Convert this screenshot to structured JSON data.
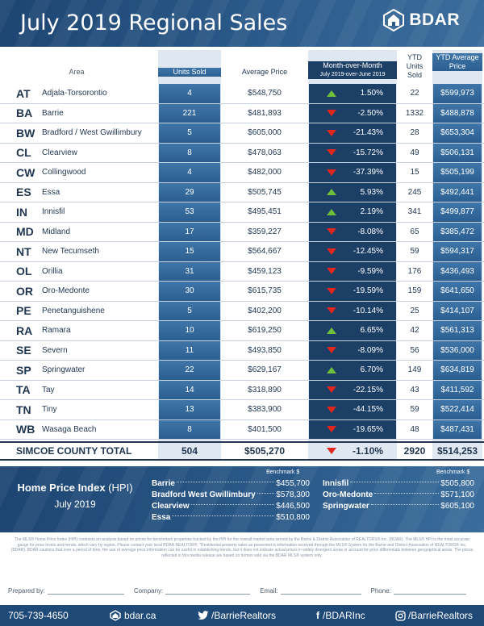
{
  "header": {
    "title": "July 2019 Regional Sales",
    "brand": "BDAR"
  },
  "table": {
    "columns": {
      "area": "Area",
      "units": "Units Sold",
      "avg": "Average Price",
      "mom": "Month-over-Month",
      "mom_sub": "July 2019-over-June 2019",
      "ytd_units": "YTD Units Sold",
      "ytd_avg": "YTD Average Price"
    },
    "rows": [
      {
        "code": "AT",
        "name": "Adjala-Torsorontio",
        "units": "4",
        "avg": "$548,750",
        "dir": "up",
        "mom": "1.50%",
        "ytd_units": "22",
        "ytd_avg": "$599,973"
      },
      {
        "code": "BA",
        "name": "Barrie",
        "units": "221",
        "avg": "$481,893",
        "dir": "down",
        "mom": "-2.50%",
        "ytd_units": "1332",
        "ytd_avg": "$488,878"
      },
      {
        "code": "BW",
        "name": "Bradford / West Gwillimbury",
        "units": "5",
        "avg": "$605,000",
        "dir": "down",
        "mom": "-21.43%",
        "ytd_units": "28",
        "ytd_avg": "$653,304"
      },
      {
        "code": "CL",
        "name": "Clearview",
        "units": "8",
        "avg": "$478,063",
        "dir": "down",
        "mom": "-15.72%",
        "ytd_units": "49",
        "ytd_avg": "$506,131"
      },
      {
        "code": "CW",
        "name": "Collingwood",
        "units": "4",
        "avg": "$482,000",
        "dir": "down",
        "mom": "-37.39%",
        "ytd_units": "15",
        "ytd_avg": "$505,199"
      },
      {
        "code": "ES",
        "name": "Essa",
        "units": "29",
        "avg": "$505,745",
        "dir": "up",
        "mom": "5.93%",
        "ytd_units": "245",
        "ytd_avg": "$492,441"
      },
      {
        "code": "IN",
        "name": "Innisfil",
        "units": "53",
        "avg": "$495,451",
        "dir": "up",
        "mom": "2.19%",
        "ytd_units": "341",
        "ytd_avg": "$499,877"
      },
      {
        "code": "MD",
        "name": "Midland",
        "units": "17",
        "avg": "$359,227",
        "dir": "down",
        "mom": "-8.08%",
        "ytd_units": "65",
        "ytd_avg": "$385,472"
      },
      {
        "code": "NT",
        "name": "New Tecumseth",
        "units": "15",
        "avg": "$564,667",
        "dir": "down",
        "mom": "-12.45%",
        "ytd_units": "59",
        "ytd_avg": "$594,317"
      },
      {
        "code": "OL",
        "name": "Orillia",
        "units": "31",
        "avg": "$459,123",
        "dir": "down",
        "mom": "-9.59%",
        "ytd_units": "176",
        "ytd_avg": "$436,493"
      },
      {
        "code": "OR",
        "name": "Oro-Medonte",
        "units": "30",
        "avg": "$615,735",
        "dir": "down",
        "mom": "-19.59%",
        "ytd_units": "159",
        "ytd_avg": "$641,650"
      },
      {
        "code": "PE",
        "name": "Penetanguishene",
        "units": "5",
        "avg": "$402,200",
        "dir": "down",
        "mom": "-10.14%",
        "ytd_units": "25",
        "ytd_avg": "$414,107"
      },
      {
        "code": "RA",
        "name": "Ramara",
        "units": "10",
        "avg": "$619,250",
        "dir": "up",
        "mom": "6.65%",
        "ytd_units": "42",
        "ytd_avg": "$561,313"
      },
      {
        "code": "SE",
        "name": "Severn",
        "units": "11",
        "avg": "$493,850",
        "dir": "down",
        "mom": "-8.09%",
        "ytd_units": "56",
        "ytd_avg": "$536,000"
      },
      {
        "code": "SP",
        "name": "Springwater",
        "units": "22",
        "avg": "$629,167",
        "dir": "up",
        "mom": "6.70%",
        "ytd_units": "149",
        "ytd_avg": "$634,819"
      },
      {
        "code": "TA",
        "name": "Tay",
        "units": "14",
        "avg": "$318,890",
        "dir": "down",
        "mom": "-22.15%",
        "ytd_units": "43",
        "ytd_avg": "$411,592"
      },
      {
        "code": "TN",
        "name": "Tiny",
        "units": "13",
        "avg": "$383,900",
        "dir": "down",
        "mom": "-44.15%",
        "ytd_units": "59",
        "ytd_avg": "$522,414"
      },
      {
        "code": "WB",
        "name": "Wasaga Beach",
        "units": "8",
        "avg": "$401,500",
        "dir": "down",
        "mom": "-19.65%",
        "ytd_units": "48",
        "ytd_avg": "$487,431"
      }
    ],
    "total": {
      "name": "SIMCOE COUNTY TOTAL",
      "units": "504",
      "avg": "$505,270",
      "dir": "down",
      "mom": "-1.10%",
      "ytd_units": "2920",
      "ytd_avg": "$514,253"
    }
  },
  "hpi": {
    "title": "Home Price Index",
    "abbr": "(HPI)",
    "date": "July 2019",
    "bench_label": "Benchmark $",
    "left": [
      {
        "name": "Barrie",
        "value": "$455,700"
      },
      {
        "name": "Bradford West Gwillimbury",
        "value": "$578,300"
      },
      {
        "name": "Clearview",
        "value": "$446,500"
      },
      {
        "name": "Essa",
        "value": "$510,800"
      }
    ],
    "right": [
      {
        "name": "Innisfil",
        "value": "$505,800"
      },
      {
        "name": "Oro-Medonte",
        "value": "$571,100"
      },
      {
        "name": "Springwater",
        "value": "$605,100"
      }
    ]
  },
  "disclaimer": "The MLS® Home Price Index (HPI) contrasts an analysis based on prices for benchmark properties tracked by the HPI for the overall market area served by the Barrie & District Association of REALTORS® Inc. (BDAR). The MLS® HPI is the most accurate gauge for price levels and trends, which vary by region, Please contact your local BDAR REALTOR®. *Residential property sales as presented is information received through the MLS® System for the Barrie and District Association of REALTORS® Inc. (BDAR). BDAR cautions that over a period of time, the use of average price information can be useful in establishing trends, but it does not indicate actual prices in widely divergent areas or account for price differentials between geographical areas. The prices reflected in this media release are based on homes sold via the BDAR MLS® system only.",
  "prepared": {
    "prepared_by": "Prepared by:",
    "company": "Company:",
    "email": "Email:",
    "phone": "Phone:"
  },
  "footer": {
    "phone": "705-739-4650",
    "web": "bdar.ca",
    "twitter": "/BarrieRealtors",
    "facebook": "/BDARInc",
    "instagram": "/BarrieRealtors"
  }
}
